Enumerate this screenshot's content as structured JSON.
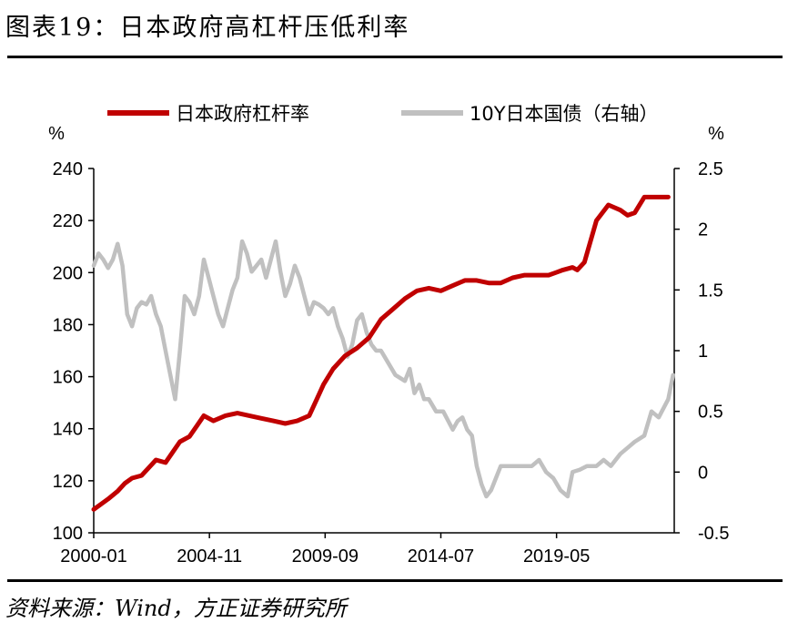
{
  "figure": {
    "title": "图表19：日本政府高杠杆压低利率",
    "source": "资料来源：Wind，方正证券研究所"
  },
  "chart_data": {
    "type": "line",
    "x_tick_labels": [
      "2000-01",
      "2004-11",
      "2009-09",
      "2014-07",
      "2019-05"
    ],
    "x_range": [
      2000.0,
      2024.25
    ],
    "left_axis": {
      "unit": "%",
      "ylim": [
        100,
        240
      ],
      "ticks": [
        "100",
        "120",
        "140",
        "160",
        "180",
        "200",
        "220",
        "240"
      ]
    },
    "right_axis": {
      "unit": "%",
      "ylim": [
        -0.5,
        2.5
      ],
      "ticks": [
        "-0.5",
        "0",
        "0.5",
        "1",
        "1.5",
        "2",
        "2.5"
      ]
    },
    "series": [
      {
        "name": "日本政府杠杆率",
        "axis": "left",
        "color": "#c00000",
        "x": [
          2000.0,
          2000.3,
          2000.6,
          2001.0,
          2001.3,
          2001.6,
          2002.0,
          2002.3,
          2002.6,
          2003.0,
          2003.3,
          2003.6,
          2004.0,
          2004.3,
          2004.6,
          2005.0,
          2005.5,
          2006.0,
          2006.5,
          2007.0,
          2007.5,
          2008.0,
          2008.5,
          2009.0,
          2009.3,
          2009.6,
          2010.0,
          2010.5,
          2011.0,
          2011.5,
          2012.0,
          2012.5,
          2013.0,
          2013.5,
          2014.0,
          2014.5,
          2015.0,
          2015.5,
          2016.0,
          2016.5,
          2017.0,
          2017.5,
          2018.0,
          2018.5,
          2019.0,
          2019.3,
          2019.6,
          2020.0,
          2020.2,
          2020.5,
          2021.0,
          2021.5,
          2022.0,
          2022.3,
          2022.6,
          2023.0,
          2023.5,
          2024.0
        ],
        "values": [
          109,
          111,
          113,
          116,
          119,
          121,
          122,
          125,
          128,
          127,
          131,
          135,
          137,
          141,
          145,
          143,
          145,
          146,
          145,
          144,
          143,
          142,
          143,
          145,
          151,
          157,
          163,
          168,
          171,
          175,
          182,
          186,
          190,
          193,
          194,
          193,
          195,
          197,
          197,
          196,
          196,
          198,
          199,
          199,
          199,
          200,
          201,
          202,
          201,
          204,
          220,
          226,
          224,
          222,
          223,
          229,
          229,
          229
        ]
      },
      {
        "name": "10Y日本国债（右轴）",
        "axis": "right",
        "color": "#c0c0c0",
        "x": [
          2000.0,
          2000.2,
          2000.4,
          2000.6,
          2000.8,
          2001.0,
          2001.2,
          2001.4,
          2001.6,
          2001.8,
          2002.0,
          2002.2,
          2002.4,
          2002.6,
          2002.8,
          2003.0,
          2003.2,
          2003.4,
          2003.6,
          2003.8,
          2004.0,
          2004.2,
          2004.4,
          2004.6,
          2004.8,
          2005.0,
          2005.2,
          2005.4,
          2005.6,
          2005.8,
          2006.0,
          2006.2,
          2006.4,
          2006.6,
          2006.8,
          2007.0,
          2007.2,
          2007.4,
          2007.6,
          2007.8,
          2008.0,
          2008.2,
          2008.4,
          2008.6,
          2008.8,
          2009.0,
          2009.2,
          2009.4,
          2009.6,
          2009.8,
          2010.0,
          2010.2,
          2010.4,
          2010.6,
          2010.8,
          2011.0,
          2011.2,
          2011.4,
          2011.6,
          2011.8,
          2012.0,
          2012.3,
          2012.6,
          2013.0,
          2013.2,
          2013.4,
          2013.6,
          2013.8,
          2014.0,
          2014.3,
          2014.6,
          2015.0,
          2015.2,
          2015.4,
          2015.6,
          2015.8,
          2016.0,
          2016.2,
          2016.4,
          2016.6,
          2016.8,
          2017.0,
          2017.3,
          2017.6,
          2018.0,
          2018.3,
          2018.6,
          2018.9,
          2019.2,
          2019.5,
          2019.8,
          2020.0,
          2020.3,
          2020.6,
          2021.0,
          2021.3,
          2021.6,
          2022.0,
          2022.3,
          2022.6,
          2023.0,
          2023.3,
          2023.6,
          2024.0,
          2024.2
        ],
        "values": [
          1.7,
          1.8,
          1.75,
          1.68,
          1.75,
          1.88,
          1.7,
          1.3,
          1.2,
          1.35,
          1.4,
          1.38,
          1.45,
          1.3,
          1.2,
          1.0,
          0.8,
          0.6,
          1.0,
          1.45,
          1.4,
          1.3,
          1.45,
          1.75,
          1.6,
          1.45,
          1.3,
          1.2,
          1.35,
          1.5,
          1.6,
          1.9,
          1.8,
          1.65,
          1.7,
          1.75,
          1.6,
          1.75,
          1.9,
          1.65,
          1.45,
          1.55,
          1.7,
          1.6,
          1.45,
          1.3,
          1.4,
          1.38,
          1.35,
          1.3,
          1.35,
          1.2,
          1.1,
          0.95,
          1.05,
          1.25,
          1.3,
          1.15,
          1.05,
          1.0,
          1.0,
          0.9,
          0.8,
          0.75,
          0.85,
          0.65,
          0.72,
          0.6,
          0.6,
          0.5,
          0.5,
          0.35,
          0.42,
          0.45,
          0.35,
          0.3,
          0.05,
          -0.1,
          -0.2,
          -0.15,
          -0.05,
          0.05,
          0.05,
          0.05,
          0.05,
          0.05,
          0.1,
          0.0,
          -0.05,
          -0.15,
          -0.2,
          0.0,
          0.02,
          0.05,
          0.05,
          0.1,
          0.05,
          0.15,
          0.2,
          0.25,
          0.3,
          0.5,
          0.45,
          0.6,
          0.8
        ]
      }
    ]
  }
}
